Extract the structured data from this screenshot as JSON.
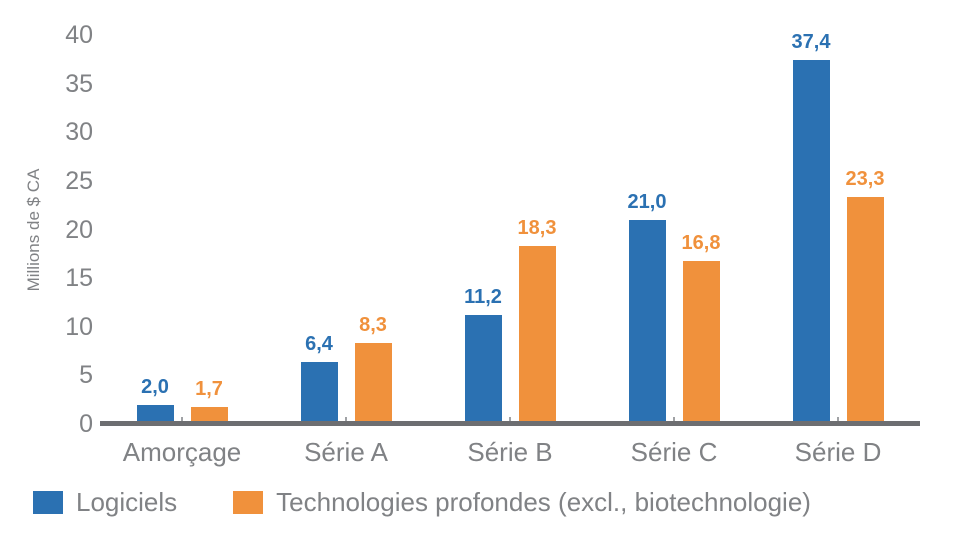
{
  "chart_data": {
    "type": "bar",
    "title": "",
    "categories": [
      "Amorçage",
      "Série A",
      "Série B",
      "Série C",
      "Série D"
    ],
    "series": [
      {
        "name": "Logiciels",
        "color": "#2b71b2",
        "values": [
          2.0,
          6.4,
          11.2,
          21.0,
          37.4
        ],
        "value_labels": [
          "2,0",
          "6,4",
          "11,2",
          "21,0",
          "37,4"
        ]
      },
      {
        "name": "Technologies profondes (excl., biotechnologie)",
        "color": "#f0913c",
        "values": [
          1.7,
          8.3,
          18.3,
          16.8,
          23.3
        ],
        "value_labels": [
          "1,7",
          "8,3",
          "18,3",
          "16,8",
          "23,3"
        ]
      }
    ],
    "xlabel": "",
    "ylabel": "Millions de $ CA",
    "ylim": [
      0,
      40
    ],
    "yticks": [
      0,
      5,
      10,
      15,
      20,
      25,
      30,
      35,
      40
    ],
    "grid": false,
    "legend_position": "bottom-left",
    "colors": {
      "tick_text": "#808285",
      "category_text": "#808285",
      "legend_text": "#808285",
      "axis_line": "#6d6e71",
      "tick_mark": "#a0a2a5",
      "background": "#ffffff"
    }
  }
}
